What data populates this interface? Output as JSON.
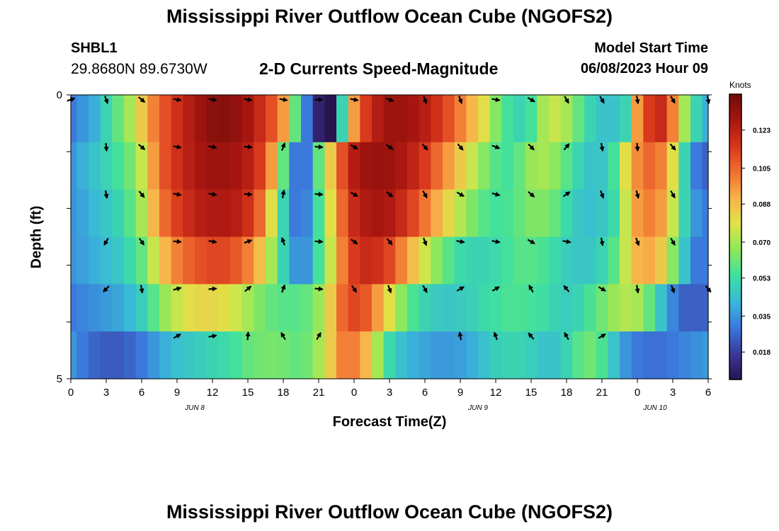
{
  "page": {
    "title_top": "Mississippi River Outflow Ocean Cube (NGOFS2)",
    "title_bottom": "Mississippi River Outflow Ocean Cube (NGOFS2)",
    "station": "SHBL1",
    "coordinates": "29.8680N  89.6730W",
    "subtitle": "2-D Currents Speed-Magnitude",
    "model_start_label": "Model Start Time",
    "model_start_value": "06/08/2023 Hour 09"
  },
  "chart_data": {
    "type": "heatmap",
    "title": "2-D Currents Speed-Magnitude",
    "xlabel": "Forecast Time(Z)",
    "ylabel": "Depth (ft)",
    "x_ticks": [
      "0",
      "3",
      "6",
      "9",
      "12",
      "15",
      "18",
      "21",
      "0",
      "3",
      "6",
      "9",
      "12",
      "15",
      "18",
      "21",
      "0",
      "3",
      "6"
    ],
    "date_labels": [
      {
        "text": "JUN 8",
        "tick_index": 3.5
      },
      {
        "text": "JUN 9",
        "tick_index": 11.5
      },
      {
        "text": "JUN 10",
        "tick_index": 16.5
      }
    ],
    "y_ticks": [
      "0",
      "",
      "",
      "",
      "",
      "5"
    ],
    "ylim": [
      0,
      5
    ],
    "xlim_hours": [
      0,
      54
    ],
    "colorbar": {
      "label": "Knots",
      "ticks": [
        0.018,
        0.035,
        0.053,
        0.07,
        0.088,
        0.105,
        0.123
      ],
      "tick_labels": [
        "0.018",
        "0.035",
        "0.053",
        "0.070",
        "0.088",
        "0.105",
        "0.123"
      ],
      "range": [
        0.005,
        0.14
      ],
      "colors": [
        "#2a1450",
        "#3a3a9a",
        "#3b78dc",
        "#39b9d8",
        "#3de0a0",
        "#8ee85a",
        "#dfe448",
        "#f8b24a",
        "#f07030",
        "#d8371c",
        "#a81510",
        "#6e0d08"
      ]
    },
    "speed_grid": {
      "hours": [
        0,
        1,
        2,
        3,
        4,
        5,
        6,
        7,
        8,
        9,
        10,
        11,
        12,
        13,
        14,
        15,
        16,
        17,
        18,
        19,
        20,
        21,
        22,
        23,
        24,
        25,
        26,
        27,
        28,
        29,
        30,
        31,
        32,
        33,
        34,
        35,
        36,
        37,
        38,
        39,
        40,
        41,
        42,
        43,
        44,
        45,
        46,
        47,
        48,
        49,
        50,
        51,
        52,
        53,
        54
      ],
      "rows": [
        [
          0.03,
          0.035,
          0.04,
          0.05,
          0.06,
          0.07,
          0.085,
          0.1,
          0.11,
          0.118,
          0.125,
          0.13,
          0.134,
          0.135,
          0.132,
          0.128,
          0.12,
          0.11,
          0.095,
          0.06,
          0.03,
          0.01,
          0.005,
          0.05,
          0.095,
          0.115,
          0.125,
          0.13,
          0.13,
          0.128,
          0.124,
          0.118,
          0.11,
          0.1,
          0.09,
          0.08,
          0.065,
          0.055,
          0.05,
          0.055,
          0.07,
          0.075,
          0.07,
          0.06,
          0.05,
          0.045,
          0.045,
          0.05,
          0.095,
          0.115,
          0.12,
          0.1,
          0.07,
          0.05,
          0.04
        ],
        [
          0.035,
          0.04,
          0.045,
          0.05,
          0.055,
          0.062,
          0.075,
          0.095,
          0.11,
          0.118,
          0.124,
          0.128,
          0.13,
          0.13,
          0.128,
          0.124,
          0.115,
          0.095,
          0.06,
          0.03,
          0.03,
          0.06,
          0.085,
          0.11,
          0.125,
          0.13,
          0.131,
          0.13,
          0.127,
          0.122,
          0.115,
          0.105,
          0.095,
          0.085,
          0.075,
          0.065,
          0.058,
          0.055,
          0.06,
          0.068,
          0.07,
          0.066,
          0.058,
          0.05,
          0.045,
          0.046,
          0.055,
          0.08,
          0.098,
          0.105,
          0.1,
          0.08,
          0.05,
          0.03,
          0.025
        ],
        [
          0.035,
          0.038,
          0.042,
          0.046,
          0.05,
          0.058,
          0.07,
          0.09,
          0.105,
          0.114,
          0.12,
          0.124,
          0.126,
          0.126,
          0.124,
          0.118,
          0.105,
          0.08,
          0.05,
          0.03,
          0.032,
          0.055,
          0.08,
          0.105,
          0.12,
          0.126,
          0.128,
          0.126,
          0.12,
          0.112,
          0.102,
          0.092,
          0.082,
          0.072,
          0.064,
          0.058,
          0.055,
          0.056,
          0.06,
          0.064,
          0.064,
          0.06,
          0.052,
          0.046,
          0.044,
          0.046,
          0.052,
          0.075,
          0.095,
          0.1,
          0.095,
          0.075,
          0.05,
          0.035,
          0.03
        ],
        [
          0.035,
          0.037,
          0.04,
          0.043,
          0.046,
          0.052,
          0.06,
          0.075,
          0.09,
          0.1,
          0.106,
          0.11,
          0.112,
          0.112,
          0.108,
          0.1,
          0.088,
          0.07,
          0.05,
          0.035,
          0.035,
          0.055,
          0.075,
          0.1,
          0.115,
          0.12,
          0.118,
          0.112,
          0.1,
          0.088,
          0.076,
          0.066,
          0.058,
          0.052,
          0.05,
          0.05,
          0.052,
          0.055,
          0.058,
          0.058,
          0.056,
          0.052,
          0.048,
          0.046,
          0.046,
          0.05,
          0.058,
          0.075,
          0.09,
          0.092,
          0.085,
          0.065,
          0.045,
          0.03,
          0.03
        ],
        [
          0.03,
          0.032,
          0.034,
          0.036,
          0.038,
          0.042,
          0.048,
          0.058,
          0.068,
          0.075,
          0.08,
          0.082,
          0.082,
          0.08,
          0.076,
          0.07,
          0.064,
          0.06,
          0.058,
          0.058,
          0.06,
          0.068,
          0.085,
          0.105,
          0.112,
          0.108,
          0.095,
          0.08,
          0.066,
          0.056,
          0.05,
          0.047,
          0.046,
          0.047,
          0.049,
          0.052,
          0.054,
          0.056,
          0.056,
          0.055,
          0.053,
          0.05,
          0.048,
          0.05,
          0.056,
          0.062,
          0.068,
          0.072,
          0.07,
          0.06,
          0.045,
          0.032,
          0.025,
          0.025,
          0.025
        ],
        [
          0.035,
          0.03,
          0.026,
          0.024,
          0.024,
          0.026,
          0.03,
          0.035,
          0.04,
          0.044,
          0.046,
          0.048,
          0.05,
          0.052,
          0.055,
          0.06,
          0.062,
          0.063,
          0.062,
          0.06,
          0.062,
          0.07,
          0.085,
          0.1,
          0.1,
          0.09,
          0.07,
          0.052,
          0.044,
          0.04,
          0.038,
          0.036,
          0.036,
          0.037,
          0.04,
          0.044,
          0.048,
          0.05,
          0.05,
          0.048,
          0.045,
          0.045,
          0.05,
          0.058,
          0.062,
          0.056,
          0.045,
          0.035,
          0.03,
          0.028,
          0.028,
          0.03,
          0.032,
          0.034,
          0.036
        ]
      ]
    },
    "vectors": {
      "times": [
        0,
        3,
        6,
        9,
        12,
        15,
        18,
        21,
        24,
        27,
        30,
        33,
        36,
        39,
        42,
        45,
        48,
        51,
        54
      ],
      "directions_deg": [
        [
          70,
          160,
          130,
          100,
          100,
          100,
          100,
          90,
          100,
          110,
          160,
          160,
          100,
          120,
          150,
          150,
          170,
          150,
          170
        ],
        [
          null,
          175,
          130,
          100,
          100,
          95,
          20,
          95,
          120,
          125,
          140,
          140,
          110,
          135,
          40,
          170,
          175,
          140,
          null
        ],
        [
          null,
          170,
          140,
          100,
          100,
          95,
          10,
          95,
          120,
          130,
          150,
          120,
          105,
          130,
          55,
          160,
          165,
          150,
          null
        ],
        [
          null,
          210,
          145,
          95,
          100,
          70,
          340,
          95,
          125,
          140,
          160,
          100,
          100,
          120,
          100,
          170,
          160,
          150,
          null
        ],
        [
          null,
          225,
          170,
          75,
          85,
          50,
          20,
          95,
          145,
          160,
          150,
          60,
          60,
          330,
          320,
          120,
          170,
          160,
          140
        ],
        [
          null,
          null,
          null,
          60,
          80,
          5,
          330,
          30,
          null,
          null,
          null,
          350,
          340,
          320,
          330,
          60,
          null,
          null,
          null
        ]
      ]
    }
  }
}
